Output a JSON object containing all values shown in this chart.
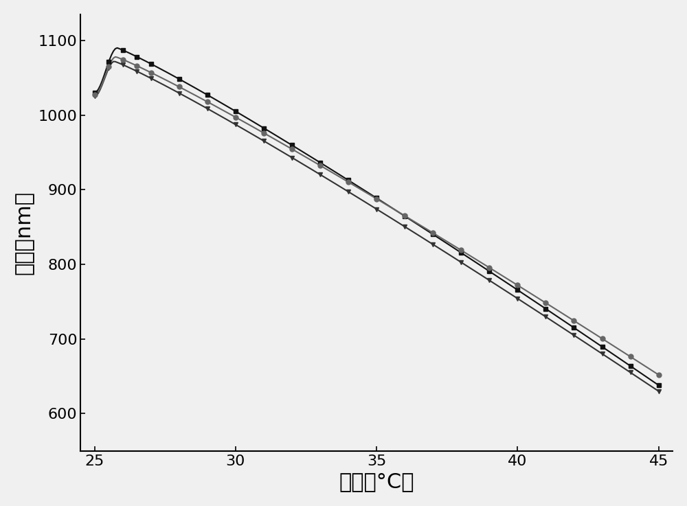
{
  "title": "",
  "xlabel": "温度（°C）",
  "ylabel": "位移（nm）",
  "xlim": [
    24.5,
    45.5
  ],
  "ylim": [
    550,
    1135
  ],
  "xticks": [
    25,
    30,
    35,
    40,
    45
  ],
  "yticks": [
    600,
    700,
    800,
    900,
    1000,
    1100
  ],
  "background_color": "#f0f0f0",
  "line_color1": "#111111",
  "line_color2": "#333333",
  "line_color3": "#666666",
  "marker1": "s",
  "marker2": "v",
  "marker3": "o",
  "markersize": 5,
  "linewidth": 1.5,
  "xlabel_fontsize": 22,
  "ylabel_fontsize": 22,
  "tick_fontsize": 16
}
